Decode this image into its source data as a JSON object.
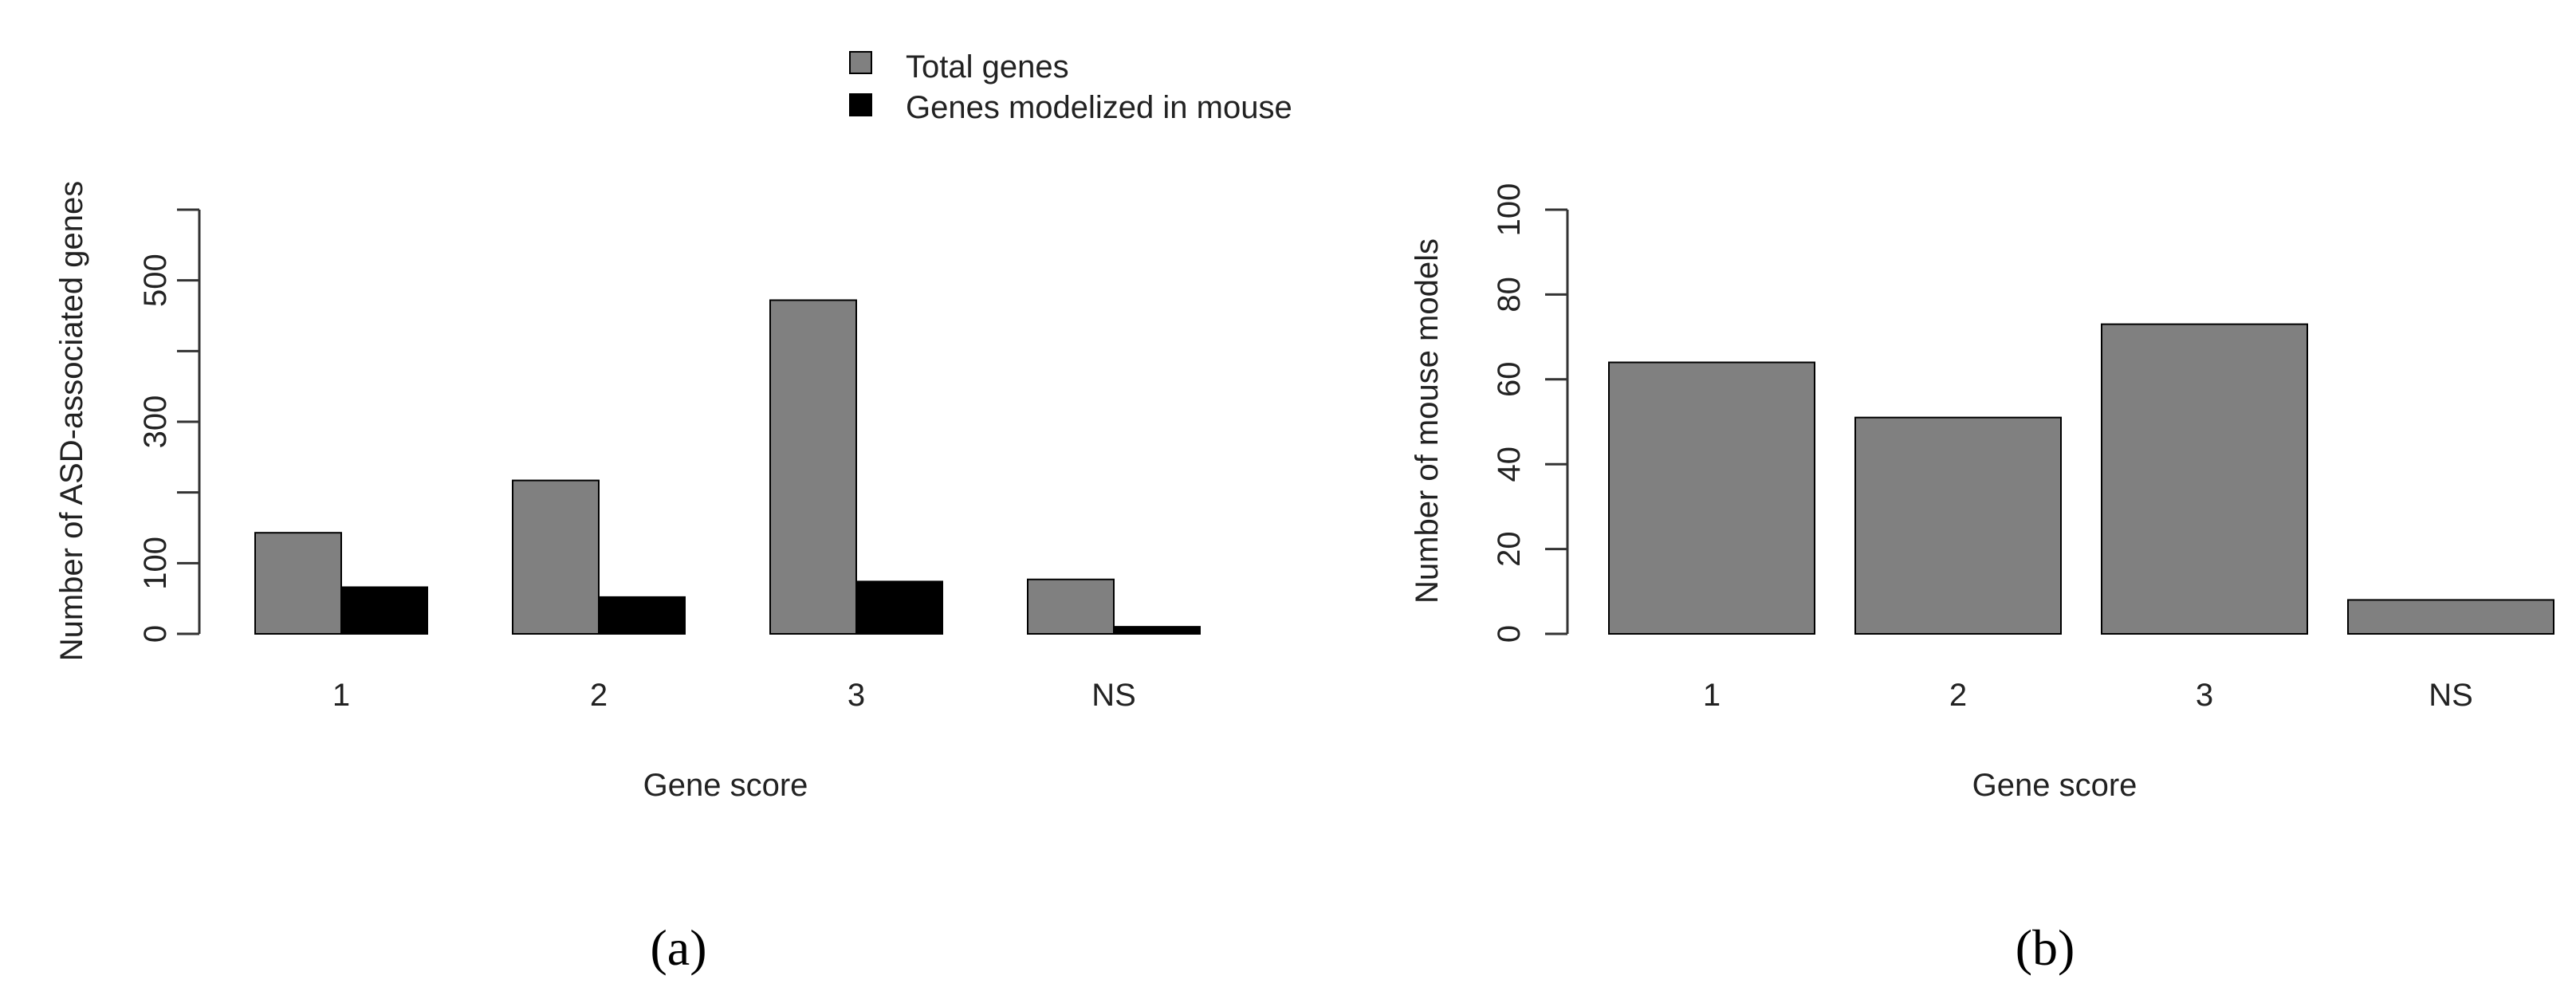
{
  "chart_data": [
    {
      "type": "bar",
      "panel_label": "(a)",
      "title": "",
      "xlabel": "Gene score",
      "ylabel": "Number of ASD-associated genes",
      "categories": [
        "1",
        "2",
        "3",
        "NS"
      ],
      "series": [
        {
          "name": "Total genes",
          "color": "#808080",
          "values": [
            143,
            217,
            472,
            77
          ]
        },
        {
          "name": "Genes modelized in mouse",
          "color": "#000000",
          "values": [
            66,
            52,
            74,
            10
          ]
        }
      ],
      "ylim": [
        0,
        600
      ],
      "yticks": [
        0,
        100,
        300,
        500
      ],
      "grid": false,
      "legend": "top"
    },
    {
      "type": "bar",
      "panel_label": "(b)",
      "title": "",
      "xlabel": "Gene score",
      "ylabel": "Number of mouse models",
      "categories": [
        "1",
        "2",
        "3",
        "NS"
      ],
      "series": [
        {
          "name": "Mouse models",
          "color": "#808080",
          "values": [
            64,
            51,
            73,
            8
          ]
        }
      ],
      "ylim": [
        0,
        100
      ],
      "yticks": [
        0,
        20,
        40,
        60,
        80,
        100
      ],
      "grid": false,
      "legend": "none"
    }
  ]
}
